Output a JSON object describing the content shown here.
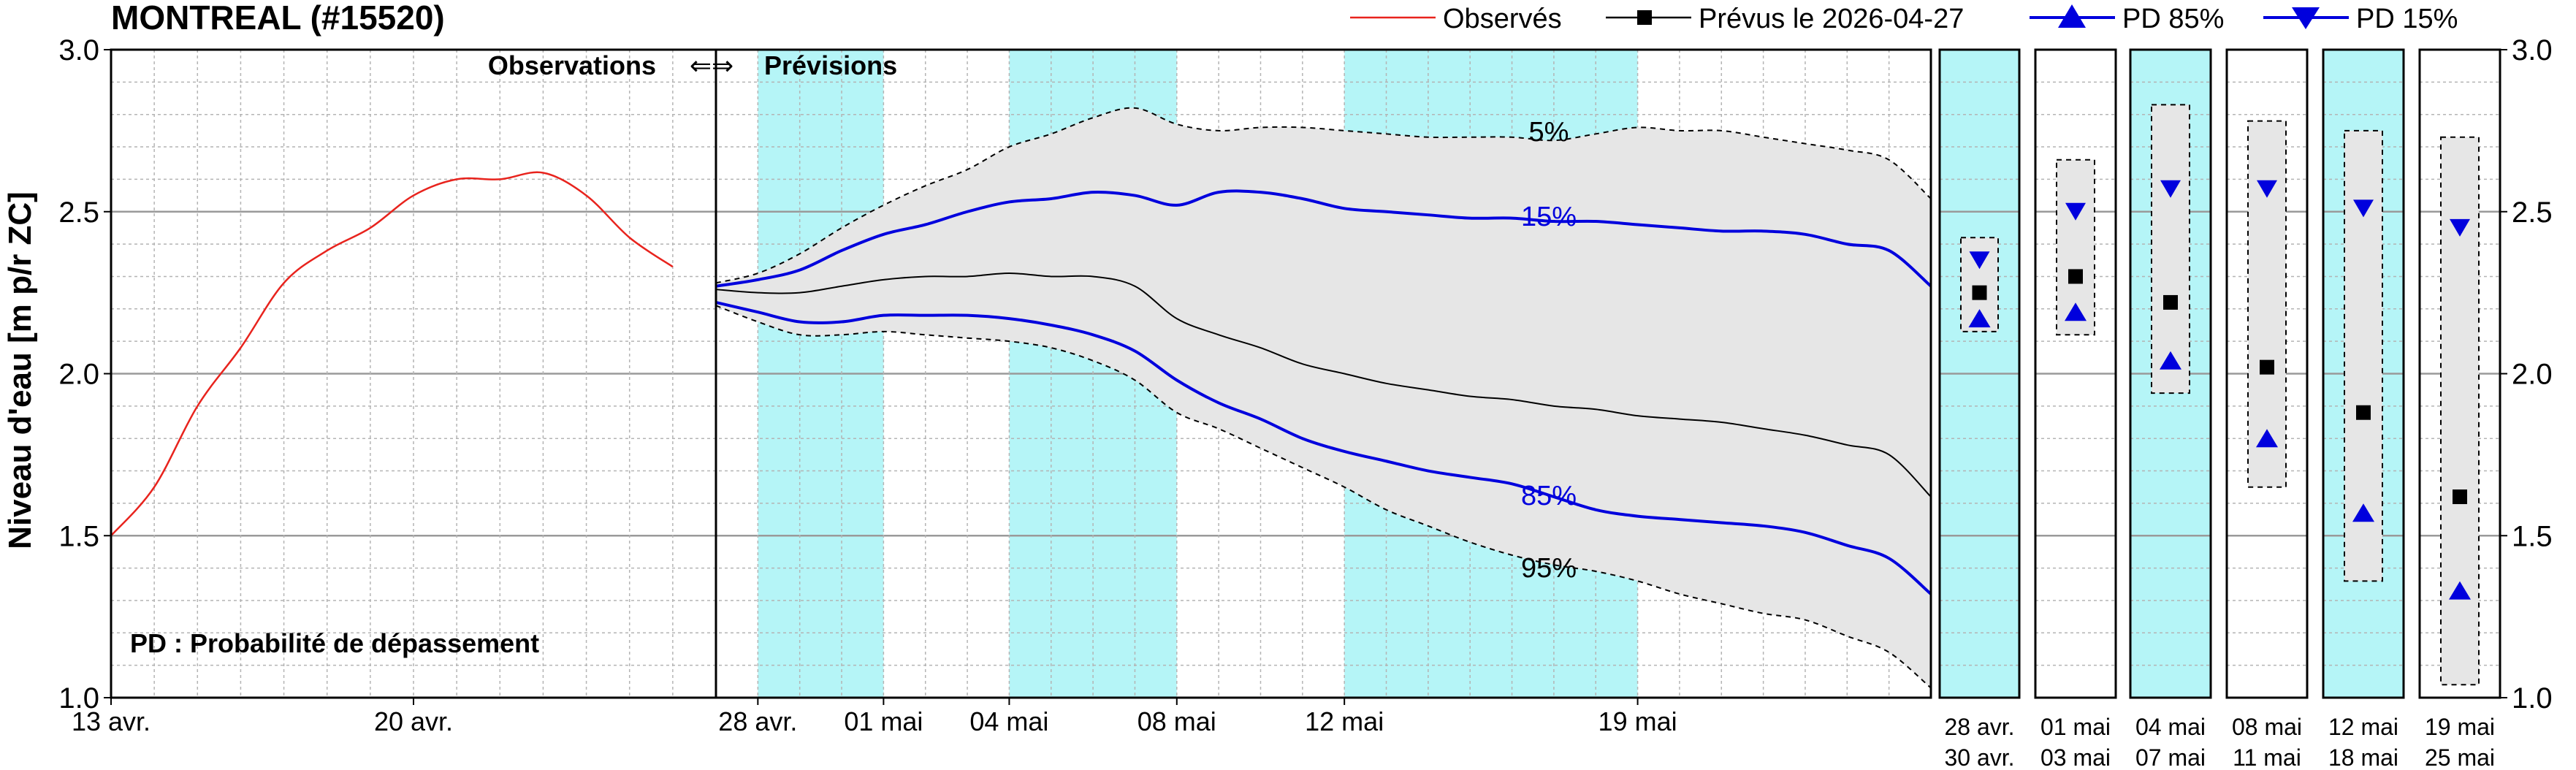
{
  "header": {
    "title": "MONTREAL (#15520)"
  },
  "legend": {
    "observed": "Observés",
    "forecast": "Prévus le 2026-04-27",
    "pd85": "PD 85%",
    "pd15": "PD 15%"
  },
  "annotations": {
    "observations": "Observations",
    "arrows": "⇐⇒",
    "forecasts": "Prévisions",
    "footnote": "PD : Probabilité de dépassement",
    "label_5": "5%",
    "label_15": "15%",
    "label_85": "85%",
    "label_95": "95%"
  },
  "colors": {
    "observed": "#e8231d",
    "forecast": "#000000",
    "pd": "#0000dd",
    "band_fill": "#e6e6e6",
    "highlight": "#b5f5f7",
    "grid": "#b4b4b4"
  },
  "chart_data": {
    "type": "line",
    "ylabel": "Niveau d'eau [m p/r ZC]",
    "ylim": [
      1.0,
      3.0
    ],
    "yticks": [
      1.0,
      1.5,
      2.0,
      2.5,
      3.0
    ],
    "ytick_labels": [
      "1.0",
      "1.5",
      "2.0",
      "2.5",
      "3.0"
    ],
    "grid": true,
    "legend_position": "top-right",
    "observations": {
      "x_start": "2026-04-13",
      "x_end": "2026-04-27",
      "xticks": [
        {
          "date": "2026-04-13",
          "label": "13 avr."
        },
        {
          "date": "2026-04-20",
          "label": "20 avr."
        }
      ],
      "series": [
        {
          "name": "Observés",
          "x": [
            "2026-04-13",
            "2026-04-14",
            "2026-04-15",
            "2026-04-16",
            "2026-04-17",
            "2026-04-18",
            "2026-04-19",
            "2026-04-20",
            "2026-04-21",
            "2026-04-22",
            "2026-04-23",
            "2026-04-24",
            "2026-04-25",
            "2026-04-26"
          ],
          "y": [
            1.5,
            1.65,
            1.9,
            2.08,
            2.28,
            2.38,
            2.45,
            2.55,
            2.6,
            2.6,
            2.62,
            2.55,
            2.42,
            2.33
          ]
        }
      ]
    },
    "forecast": {
      "x_start": "2026-04-27",
      "x_end": "2026-05-26",
      "xticks": [
        {
          "date": "2026-04-28",
          "label": "28 avr."
        },
        {
          "date": "2026-05-01",
          "label": "01 mai"
        },
        {
          "date": "2026-05-04",
          "label": "04 mai"
        },
        {
          "date": "2026-05-08",
          "label": "08 mai"
        },
        {
          "date": "2026-05-12",
          "label": "12 mai"
        },
        {
          "date": "2026-05-19",
          "label": "19 mai"
        }
      ],
      "highlight_periods": [
        [
          "2026-04-28",
          "2026-05-01"
        ],
        [
          "2026-05-04",
          "2026-05-08"
        ],
        [
          "2026-05-12",
          "2026-05-19"
        ]
      ],
      "x": [
        "2026-04-27",
        "2026-04-28",
        "2026-04-29",
        "2026-04-30",
        "2026-05-01",
        "2026-05-02",
        "2026-05-03",
        "2026-05-04",
        "2026-05-05",
        "2026-05-06",
        "2026-05-07",
        "2026-05-08",
        "2026-05-09",
        "2026-05-10",
        "2026-05-11",
        "2026-05-12",
        "2026-05-13",
        "2026-05-14",
        "2026-05-15",
        "2026-05-16",
        "2026-05-17",
        "2026-05-18",
        "2026-05-19",
        "2026-05-20",
        "2026-05-21",
        "2026-05-22",
        "2026-05-23",
        "2026-05-24",
        "2026-05-25",
        "2026-05-26"
      ],
      "series": [
        {
          "name": "5%",
          "y": [
            2.28,
            2.31,
            2.37,
            2.45,
            2.52,
            2.58,
            2.63,
            2.7,
            2.74,
            2.79,
            2.82,
            2.77,
            2.75,
            2.76,
            2.76,
            2.75,
            2.74,
            2.73,
            2.73,
            2.73,
            2.72,
            2.74,
            2.76,
            2.75,
            2.75,
            2.73,
            2.71,
            2.69,
            2.66,
            2.54
          ]
        },
        {
          "name": "15%",
          "y": [
            2.27,
            2.29,
            2.32,
            2.38,
            2.43,
            2.46,
            2.5,
            2.53,
            2.54,
            2.56,
            2.55,
            2.52,
            2.56,
            2.56,
            2.54,
            2.51,
            2.5,
            2.49,
            2.48,
            2.48,
            2.47,
            2.47,
            2.46,
            2.45,
            2.44,
            2.44,
            2.43,
            2.4,
            2.38,
            2.27
          ]
        },
        {
          "name": "Prévus le 2026-04-27",
          "y": [
            2.26,
            2.25,
            2.25,
            2.27,
            2.29,
            2.3,
            2.3,
            2.31,
            2.3,
            2.3,
            2.27,
            2.17,
            2.12,
            2.08,
            2.03,
            2.0,
            1.97,
            1.95,
            1.93,
            1.92,
            1.9,
            1.89,
            1.87,
            1.86,
            1.85,
            1.83,
            1.81,
            1.78,
            1.75,
            1.62
          ]
        },
        {
          "name": "85%",
          "y": [
            2.22,
            2.19,
            2.16,
            2.16,
            2.18,
            2.18,
            2.18,
            2.17,
            2.15,
            2.12,
            2.07,
            1.98,
            1.91,
            1.86,
            1.8,
            1.76,
            1.73,
            1.7,
            1.68,
            1.66,
            1.62,
            1.58,
            1.56,
            1.55,
            1.54,
            1.53,
            1.51,
            1.47,
            1.43,
            1.32
          ]
        },
        {
          "name": "95%",
          "y": [
            2.21,
            2.16,
            2.12,
            2.12,
            2.13,
            2.12,
            2.11,
            2.1,
            2.08,
            2.04,
            1.98,
            1.88,
            1.83,
            1.77,
            1.71,
            1.65,
            1.58,
            1.53,
            1.48,
            1.44,
            1.41,
            1.39,
            1.36,
            1.32,
            1.29,
            1.26,
            1.24,
            1.19,
            1.14,
            1.03
          ]
        }
      ]
    },
    "period_panels": [
      {
        "label_top": "28  avr.",
        "label_bottom": "30  avr.",
        "highlight": true,
        "box": [
          2.13,
          2.42
        ],
        "pd15": 2.35,
        "forecast": 2.25,
        "pd85": 2.17
      },
      {
        "label_top": "01  mai",
        "label_bottom": "03  mai",
        "highlight": false,
        "box": [
          2.12,
          2.66
        ],
        "pd15": 2.5,
        "forecast": 2.3,
        "pd85": 2.19
      },
      {
        "label_top": "04  mai",
        "label_bottom": "07  mai",
        "highlight": true,
        "box": [
          1.94,
          2.83
        ],
        "pd15": 2.57,
        "forecast": 2.22,
        "pd85": 2.04
      },
      {
        "label_top": "08  mai",
        "label_bottom": "11  mai",
        "highlight": false,
        "box": [
          1.65,
          2.78
        ],
        "pd15": 2.57,
        "forecast": 2.02,
        "pd85": 1.8
      },
      {
        "label_top": "12  mai",
        "label_bottom": "18  mai",
        "highlight": true,
        "box": [
          1.36,
          2.75
        ],
        "pd15": 2.51,
        "forecast": 1.88,
        "pd85": 1.57
      },
      {
        "label_top": "19  mai",
        "label_bottom": "25  mai",
        "highlight": false,
        "box": [
          1.04,
          2.73
        ],
        "pd15": 2.45,
        "forecast": 1.62,
        "pd85": 1.33
      }
    ]
  }
}
